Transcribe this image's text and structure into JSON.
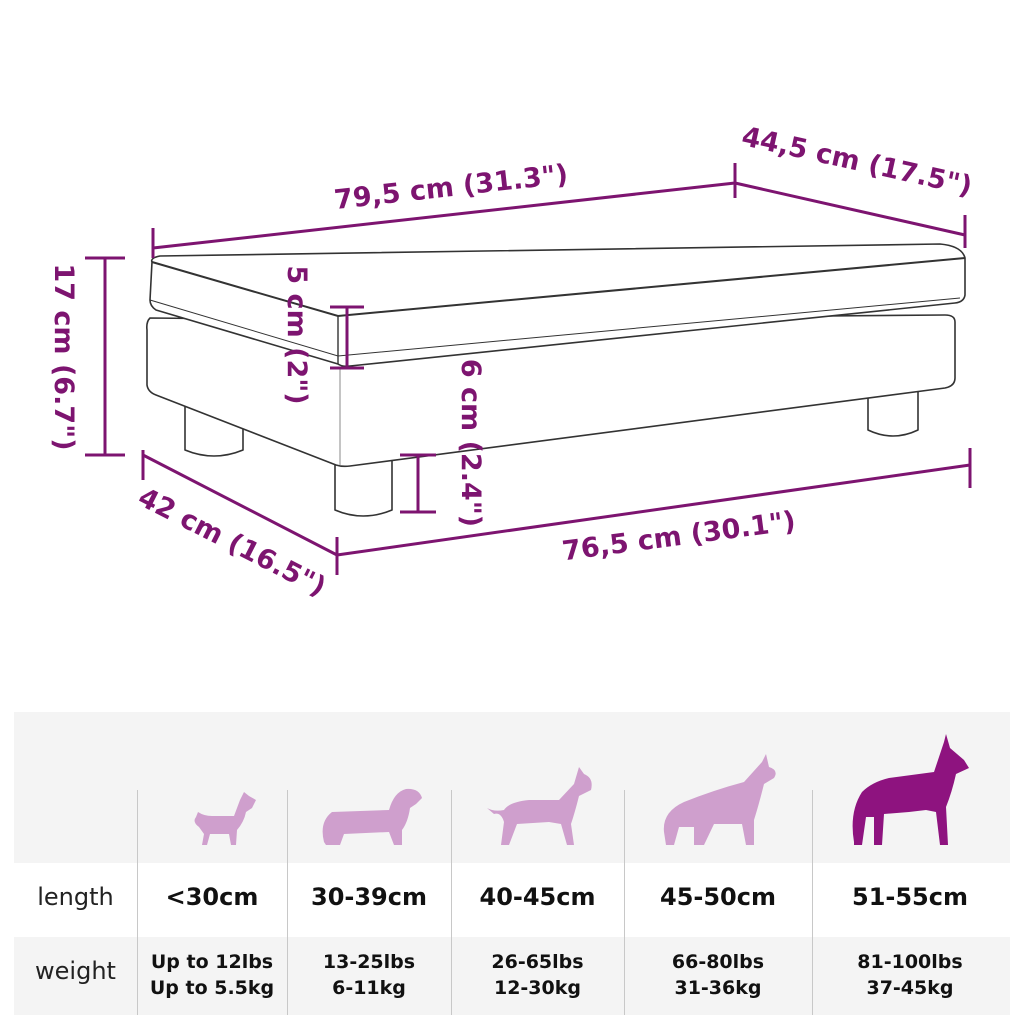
{
  "dimensions": {
    "top_length": "79,5 cm (31.3\")",
    "top_depth": "44,5 cm (17.5\")",
    "total_height": "17 cm (6.7\")",
    "cushion_height": "5 cm (2\")",
    "leg_height": "6 cm (2.4\")",
    "bottom_depth": "42 cm (16.5\")",
    "bottom_length": "76,5 cm (30.1\")"
  },
  "colors": {
    "accent": "#7d1470",
    "dog_light": "#cf9fcd",
    "dog_dark": "#8e137f"
  },
  "size_table": {
    "row_labels": {
      "length": "length",
      "weight": "weight"
    },
    "columns": [
      {
        "icon": "chihuahua-icon",
        "length": "<30cm",
        "weight_lbs": "Up to 12lbs",
        "weight_kg": "Up to 5.5kg",
        "highlighted": false
      },
      {
        "icon": "dachshund-icon",
        "length": "30-39cm",
        "weight_lbs": "13-25lbs",
        "weight_kg": "6-11kg",
        "highlighted": false
      },
      {
        "icon": "bull-terrier-icon",
        "length": "40-45cm",
        "weight_lbs": "26-65lbs",
        "weight_kg": "12-30kg",
        "highlighted": false
      },
      {
        "icon": "shepherd-icon",
        "length": "45-50cm",
        "weight_lbs": "66-80lbs",
        "weight_kg": "31-36kg",
        "highlighted": false
      },
      {
        "icon": "great-dane-icon",
        "length": "51-55cm",
        "weight_lbs": "81-100lbs",
        "weight_kg": "37-45kg",
        "highlighted": true
      }
    ]
  }
}
